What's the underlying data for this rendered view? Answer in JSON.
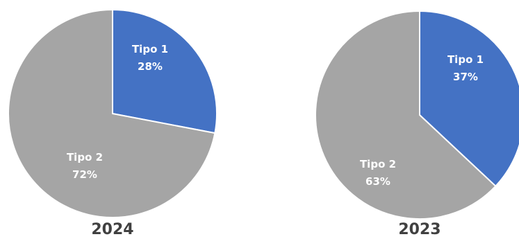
{
  "chart_data": [
    {
      "type": "pie",
      "title": "2024",
      "slices": [
        {
          "label": "Tipo 1",
          "value": 28,
          "value_label": "28%",
          "color": "#4472C4"
        },
        {
          "label": "Tipo 2",
          "value": 72,
          "value_label": "72%",
          "color": "#A5A5A5"
        }
      ],
      "start_angle_deg": 0,
      "direction": "clockwise",
      "border_color": "#ffffff"
    },
    {
      "type": "pie",
      "title": "2023",
      "slices": [
        {
          "label": "Tipo 1",
          "value": 37,
          "value_label": "37%",
          "color": "#4472C4"
        },
        {
          "label": "Tipo 2",
          "value": 63,
          "value_label": "63%",
          "color": "#A5A5A5"
        }
      ],
      "start_angle_deg": 0,
      "direction": "clockwise",
      "border_color": "#ffffff"
    }
  ]
}
